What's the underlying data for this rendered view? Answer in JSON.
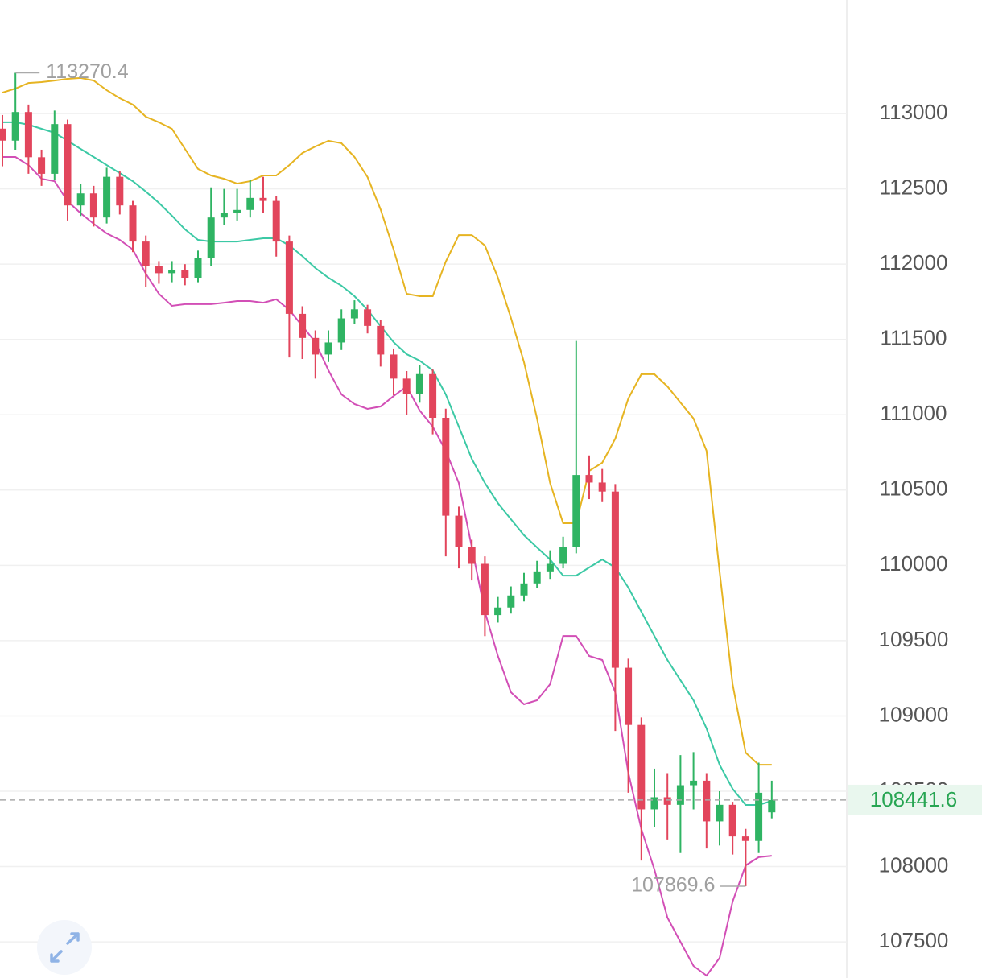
{
  "chart_data": {
    "type": "candlestick",
    "ylim": [
      107260,
      113754
    ],
    "yticks": [
      107500,
      108000,
      108500,
      109000,
      109500,
      110000,
      110500,
      111000,
      111500,
      112000,
      112500,
      113000
    ],
    "grid": true,
    "up_color": "#2fb463",
    "down_color": "#e2455c",
    "open": [
      112900,
      112820,
      113010,
      112710,
      112600,
      112930,
      112390,
      112470,
      112310,
      112580,
      112390,
      112150,
      111990,
      111940,
      111960,
      111910,
      112040,
      112310,
      112340,
      112360,
      112440,
      112420,
      112150,
      111670,
      111510,
      111400,
      111480,
      111640,
      111700,
      111590,
      111400,
      111240,
      111140,
      111270,
      110980,
      110330,
      110120,
      110010,
      109670,
      109720,
      109800,
      109880,
      109960,
      110010,
      110120,
      110600,
      110550,
      110490,
      109320,
      108940,
      108380,
      108460,
      108410,
      108540,
      108570,
      108300,
      108410,
      108200,
      108170,
      108360
    ],
    "high": [
      112990,
      113270.4,
      113060,
      112760,
      113020,
      112960,
      112530,
      112520,
      112640,
      112620,
      112420,
      112190,
      112020,
      112020,
      112000,
      112090,
      112510,
      112500,
      112500,
      112560,
      112580,
      112450,
      112190,
      111720,
      111560,
      111560,
      111700,
      111760,
      111730,
      111630,
      111440,
      111290,
      111330,
      111300,
      111040,
      110390,
      110170,
      110060,
      109790,
      109860,
      109950,
      110030,
      110100,
      110190,
      111490,
      110730,
      110640,
      110540,
      109380,
      108990,
      108650,
      108620,
      108740,
      108760,
      108620,
      108500,
      108430,
      108250,
      108690,
      108570
    ],
    "low": [
      112650,
      112760,
      112600,
      112520,
      112560,
      112290,
      112320,
      112250,
      112270,
      112330,
      112080,
      111850,
      111870,
      111880,
      111860,
      111880,
      111990,
      112260,
      112290,
      112310,
      112340,
      112050,
      111380,
      111370,
      111240,
      111350,
      111430,
      111600,
      111540,
      111320,
      111130,
      111000,
      111080,
      110870,
      110060,
      109980,
      109900,
      109530,
      109620,
      109680,
      109760,
      109850,
      109910,
      109980,
      110080,
      110440,
      110420,
      108900,
      108490,
      108040,
      108260,
      108180,
      108090,
      108380,
      108120,
      108140,
      108080,
      107869.6,
      108090,
      108320
    ],
    "close": [
      112820,
      113010,
      112710,
      112600,
      112930,
      112390,
      112470,
      112310,
      112580,
      112390,
      112150,
      111990,
      111940,
      111960,
      111910,
      112040,
      112310,
      112340,
      112360,
      112440,
      112420,
      112150,
      111670,
      111510,
      111400,
      111480,
      111640,
      111700,
      111590,
      111400,
      111240,
      111140,
      111270,
      110980,
      110330,
      110120,
      110010,
      109670,
      109720,
      109800,
      109880,
      109960,
      110010,
      110120,
      110600,
      110550,
      110490,
      109320,
      108940,
      108380,
      108460,
      108410,
      108540,
      108570,
      108300,
      108410,
      108200,
      108170,
      108490,
      108441.6
    ],
    "lines": [
      {
        "color": "#e6b422",
        "values": [
          113139,
          113166,
          113203,
          113209,
          113219,
          113230,
          113236,
          113219,
          113155,
          113102,
          113059,
          112979,
          112942,
          112899,
          112765,
          112632,
          112589,
          112567,
          112535,
          112551,
          112589,
          112589,
          112658,
          112738,
          112781,
          112819,
          112803,
          112712,
          112578,
          112364,
          112097,
          111803,
          111787,
          111787,
          112017,
          112193,
          112193,
          112124,
          111910,
          111643,
          111349,
          110975,
          110547,
          110280,
          110280,
          110627,
          110681,
          110841,
          111108,
          111269,
          111269,
          111188,
          111081,
          110975,
          110761,
          109959,
          109211,
          108756,
          108676,
          108676
        ]
      },
      {
        "color": "#3cc9a5",
        "values": [
          112942,
          112942,
          112926,
          112899,
          112872,
          112819,
          112765,
          112712,
          112658,
          112605,
          112551,
          112482,
          112407,
          112322,
          112231,
          112161,
          112150,
          112150,
          112150,
          112161,
          112172,
          112172,
          112124,
          112054,
          111974,
          111910,
          111857,
          111787,
          111696,
          111589,
          111482,
          111402,
          111359,
          111295,
          111135,
          110921,
          110707,
          110547,
          110413,
          110306,
          110200,
          110119,
          110039,
          109932,
          109932,
          109986,
          110039,
          109986,
          109852,
          109692,
          109531,
          109371,
          109237,
          109104,
          108917,
          108676,
          108516,
          108409,
          108409,
          108436
        ]
      },
      {
        "color": "#d24fb6",
        "values": [
          112712,
          112712,
          112658,
          112567,
          112551,
          112418,
          112338,
          112268,
          112204,
          112161,
          112097,
          111937,
          111803,
          111723,
          111734,
          111734,
          111734,
          111744,
          111755,
          111755,
          111744,
          111766,
          111696,
          111589,
          111482,
          111295,
          111135,
          111071,
          111039,
          111055,
          111124,
          111188,
          111028,
          110921,
          110761,
          110547,
          110119,
          109692,
          109398,
          109157,
          109077,
          109104,
          109211,
          109531,
          109531,
          109398,
          109371,
          109157,
          108623,
          108249,
          107981,
          107661,
          107500,
          107340,
          107276,
          107393,
          107768,
          108008,
          108062,
          108072
        ]
      }
    ],
    "max_marker": 113270.4,
    "min_marker": 107869.6,
    "last_price": 108441.6
  }
}
